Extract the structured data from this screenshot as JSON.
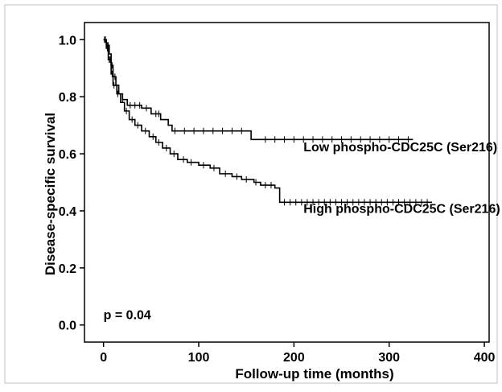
{
  "chart_data": {
    "type": "line",
    "ylabel": "Disease-specific survival",
    "xlabel": "Follow-up time (months)",
    "xlim": [
      -20,
      405
    ],
    "ylim": [
      -0.06,
      1.06
    ],
    "xticks": [
      0,
      100,
      200,
      300,
      400
    ],
    "yticks": [
      0.0,
      0.2,
      0.4,
      0.6,
      0.8,
      1.0
    ],
    "xtick_labels": [
      "0",
      "100",
      "200",
      "300",
      "400"
    ],
    "ytick_labels": [
      "0.0",
      "0.2",
      "0.4",
      "0.6",
      "0.8",
      "1.0"
    ],
    "grid": false,
    "series": [
      {
        "name": "Low phospho-CDC25C (Ser216)",
        "label_position": {
          "x": 210,
          "y": 0.625
        },
        "points": [
          [
            0,
            1.0
          ],
          [
            3,
            0.98
          ],
          [
            6,
            0.95
          ],
          [
            8,
            0.91
          ],
          [
            10,
            0.87
          ],
          [
            13,
            0.84
          ],
          [
            16,
            0.81
          ],
          [
            20,
            0.79
          ],
          [
            25,
            0.77
          ],
          [
            40,
            0.76
          ],
          [
            50,
            0.74
          ],
          [
            60,
            0.72
          ],
          [
            68,
            0.7
          ],
          [
            72,
            0.68
          ],
          [
            155,
            0.68
          ],
          [
            155,
            0.65
          ],
          [
            325,
            0.65
          ]
        ],
        "censor_marks_x": [
          2,
          4,
          5,
          9,
          12,
          20,
          28,
          33,
          38,
          45,
          55,
          58,
          75,
          85,
          95,
          105,
          115,
          125,
          135,
          145,
          170,
          180,
          190,
          200,
          210,
          220,
          230,
          240,
          250,
          260,
          270,
          280,
          290,
          300,
          310,
          320
        ]
      },
      {
        "name": "High phospho-CDC25C (Ser216)",
        "label_position": {
          "x": 210,
          "y": 0.41
        },
        "points": [
          [
            0,
            1.0
          ],
          [
            3,
            0.97
          ],
          [
            5,
            0.93
          ],
          [
            8,
            0.88
          ],
          [
            10,
            0.84
          ],
          [
            14,
            0.81
          ],
          [
            18,
            0.78
          ],
          [
            22,
            0.75
          ],
          [
            27,
            0.72
          ],
          [
            33,
            0.7
          ],
          [
            40,
            0.68
          ],
          [
            48,
            0.66
          ],
          [
            55,
            0.64
          ],
          [
            62,
            0.62
          ],
          [
            70,
            0.6
          ],
          [
            78,
            0.58
          ],
          [
            88,
            0.57
          ],
          [
            100,
            0.56
          ],
          [
            112,
            0.55
          ],
          [
            122,
            0.53
          ],
          [
            135,
            0.52
          ],
          [
            145,
            0.51
          ],
          [
            158,
            0.5
          ],
          [
            165,
            0.49
          ],
          [
            180,
            0.48
          ],
          [
            185,
            0.43
          ],
          [
            345,
            0.43
          ]
        ],
        "censor_marks_x": [
          1,
          2,
          4,
          6,
          7,
          9,
          11,
          15,
          24,
          30,
          36,
          44,
          52,
          58,
          66,
          74,
          84,
          92,
          105,
          116,
          128,
          140,
          150,
          160,
          170,
          176,
          190,
          196,
          202,
          208,
          214,
          220,
          226,
          232,
          238,
          244,
          250,
          256,
          262,
          268,
          274,
          280,
          286,
          292,
          298,
          304,
          310,
          316,
          322,
          328,
          334,
          340
        ]
      }
    ],
    "annotations": [
      {
        "text": "p = 0.04",
        "x": 0,
        "y": 0.02
      }
    ]
  }
}
